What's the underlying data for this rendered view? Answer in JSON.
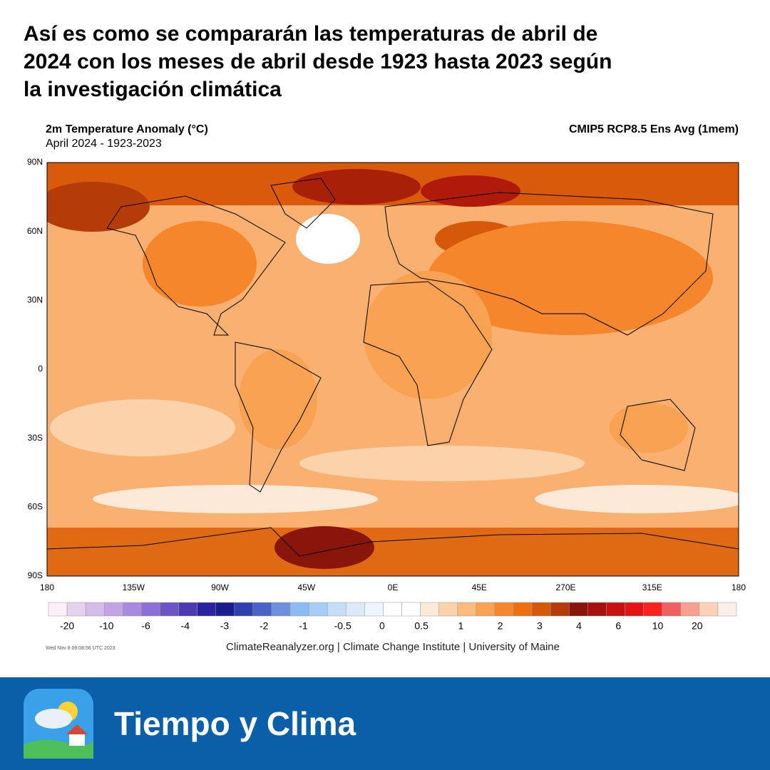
{
  "header": {
    "title_lines": [
      "Así es como se compararán las temperaturas de abril de",
      "2024 con los meses de abril desde 1923 hasta 2023 según",
      "la investigación climática"
    ]
  },
  "map": {
    "variable": "2m Temperature Anomaly (°C)",
    "period": "April 2024 - 1923-2023",
    "model": "CMIP5 RCP8.5 Ens Avg (1mem)",
    "lat_labels": [
      "90N",
      "60N",
      "30N",
      "0",
      "30S",
      "60S",
      "90S"
    ],
    "lon_labels": [
      "180",
      "135W",
      "90W",
      "45W",
      "0E",
      "45E",
      "270E",
      "315E",
      "180"
    ],
    "colorbar": {
      "labels": [
        "-20",
        "-10",
        "-6",
        "-4",
        "-3",
        "-2",
        "-1",
        "-0.5",
        "0",
        "0.5",
        "1",
        "2",
        "3",
        "4",
        "6",
        "10",
        "20"
      ],
      "colors": [
        "#fcf0f6",
        "#e6d2ef",
        "#d4bcea",
        "#c1a3e6",
        "#a88ae0",
        "#8b70d6",
        "#6c54c4",
        "#4c3ab2",
        "#2c22a0",
        "#1a1c8e",
        "#2f3fae",
        "#4a62c8",
        "#6e90dc",
        "#8cbaf2",
        "#a8cdf5",
        "#c4ddf8",
        "#dceaf9",
        "#eef5fc",
        "#ffffff",
        "#ffffff",
        "#fde9d8",
        "#fcd2ab",
        "#fbbb7c",
        "#f9a253",
        "#f5862b",
        "#ee7011",
        "#d6580a",
        "#b53b08",
        "#8a150a",
        "#a80f0f",
        "#c90f0f",
        "#e41414",
        "#ff2020",
        "#f06060",
        "#f8a090",
        "#fbd2b8",
        "#fdeeea"
      ]
    },
    "timestamp": "Wed Nov  8 09:08:56 UTC 2023",
    "credit": "ClimateReanalyzer.org | Climate Change Institute | University of Maine"
  },
  "banner": {
    "brand": "Tiempo y Clima"
  }
}
